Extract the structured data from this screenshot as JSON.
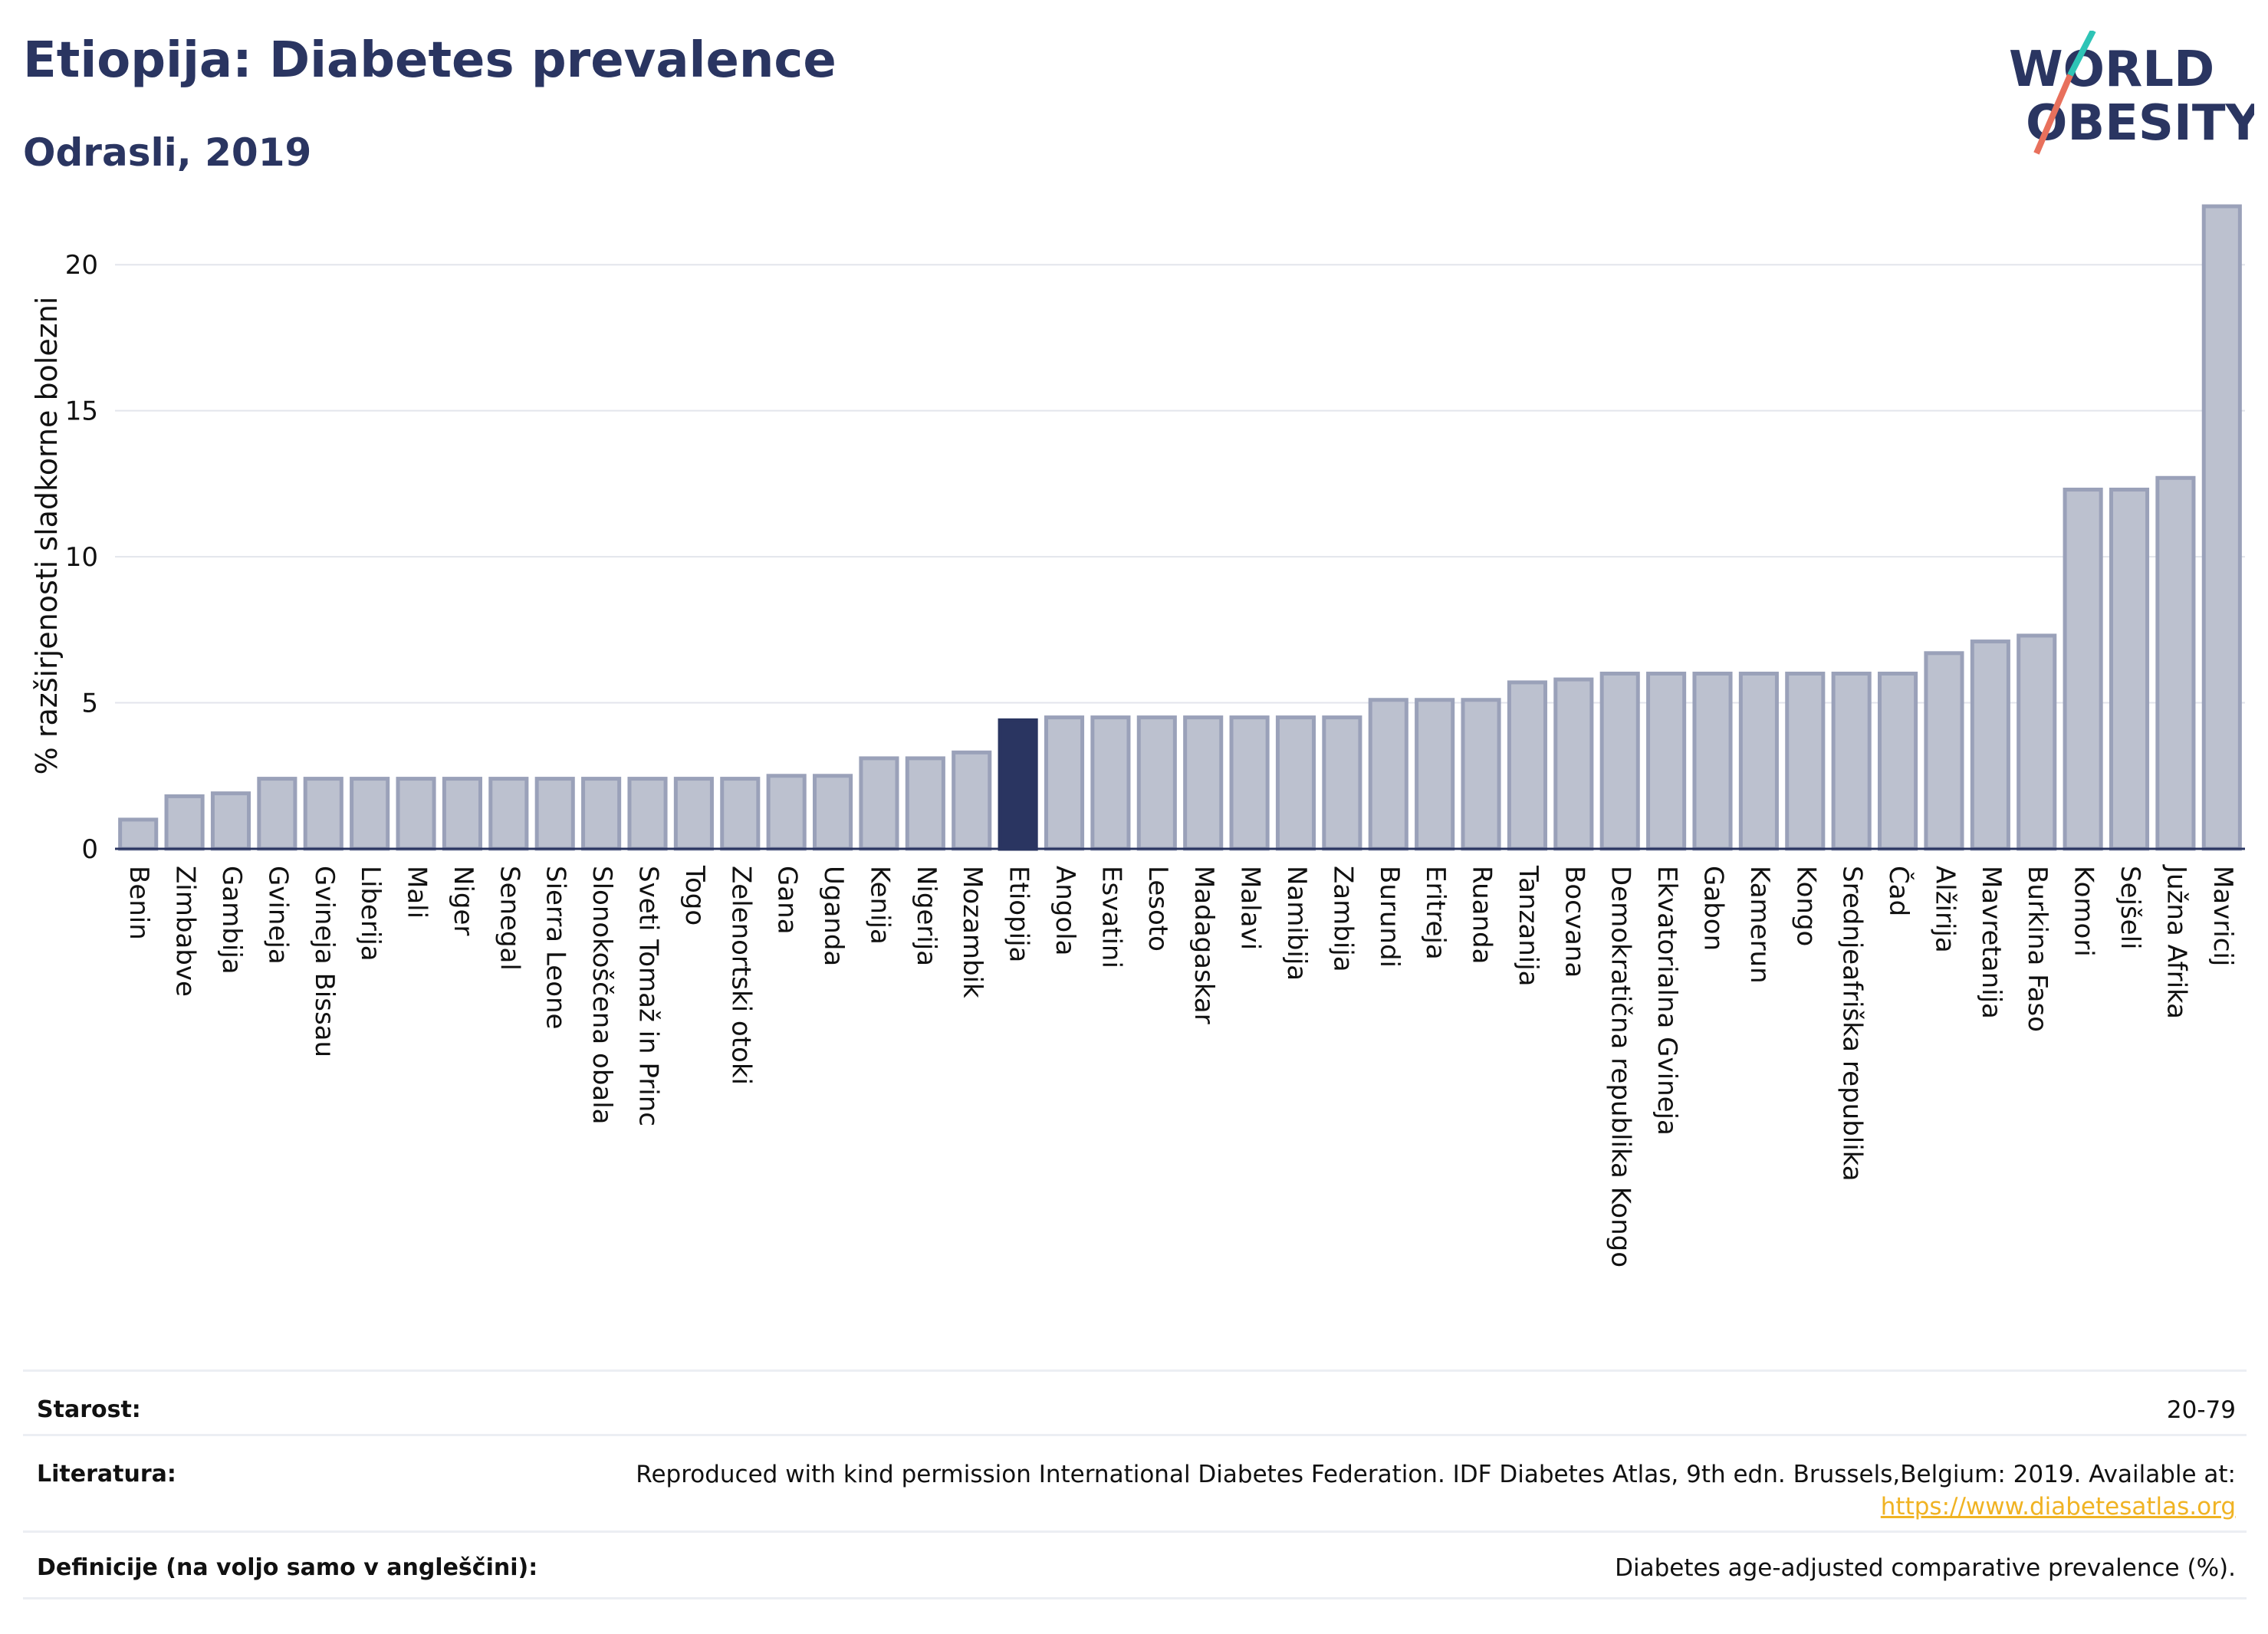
{
  "title": "Etiopija: Diabetes prevalence",
  "subtitle": "Odrasli, 2019",
  "logo": {
    "line1": "WORLD",
    "line2": "OBESITY"
  },
  "colors": {
    "highlight": "#2a3561",
    "bar_fill": "#bcc1cf",
    "bar_stroke": "#9aa1b9",
    "link": "#f0b323",
    "accent_teal": "#2ec4b6",
    "accent_coral": "#e8705c"
  },
  "chart_data": {
    "type": "bar",
    "ylabel": "% razširjenosti sladkorne bolezni",
    "ylim": [
      0,
      22.5
    ],
    "yticks": [
      0,
      5,
      10,
      15,
      20
    ],
    "highlight": "Etiopija",
    "grid": true,
    "categories": [
      "Benin",
      "Zimbabve",
      "Gambija",
      "Gvineja",
      "Gvineja Bissau",
      "Liberija",
      "Mali",
      "Niger",
      "Senegal",
      "Sierra Leone",
      "Slonokoščena obala",
      "Sveti Tomaž in Princ",
      "Togo",
      "Zelenortski otoki",
      "Gana",
      "Uganda",
      "Kenija",
      "Nigerija",
      "Mozambik",
      "Etiopija",
      "Angola",
      "Esvatini",
      "Lesoto",
      "Madagaskar",
      "Malavi",
      "Namibija",
      "Zambija",
      "Burundi",
      "Eritreja",
      "Ruanda",
      "Tanzanija",
      "Bocvana",
      "Demokratična republika Kongo",
      "Ekvatorialna Gvineja",
      "Gabon",
      "Kamerun",
      "Kongo",
      "Srednjeafriška republika",
      "Čad",
      "Alžirija",
      "Mavretanija",
      "Burkina Faso",
      "Komori",
      "Sejšeli",
      "Južna Afrika",
      "Mavricij"
    ],
    "values": [
      1.0,
      1.8,
      1.9,
      2.4,
      2.4,
      2.4,
      2.4,
      2.4,
      2.4,
      2.4,
      2.4,
      2.4,
      2.4,
      2.4,
      2.5,
      2.5,
      3.1,
      3.1,
      3.3,
      4.4,
      4.5,
      4.5,
      4.5,
      4.5,
      4.5,
      4.5,
      4.5,
      5.1,
      5.1,
      5.1,
      5.7,
      5.8,
      6.0,
      6.0,
      6.0,
      6.0,
      6.0,
      6.0,
      6.0,
      6.7,
      7.1,
      7.3,
      12.3,
      12.3,
      12.7,
      22.0
    ]
  },
  "info": {
    "age_label": "Starost:",
    "age_value": "20-79",
    "source_label": "Literatura:",
    "source_value": "Reproduced with kind permission International Diabetes Federation. IDF Diabetes Atlas, 9th edn. Brussels,Belgium: 2019. Available at:",
    "source_link": "https://www.diabetesatlas.org",
    "definition_label": "Definicije (na voljo samo v angleščini):",
    "definition_value": "Diabetes age-adjusted comparative prevalence (%)."
  }
}
